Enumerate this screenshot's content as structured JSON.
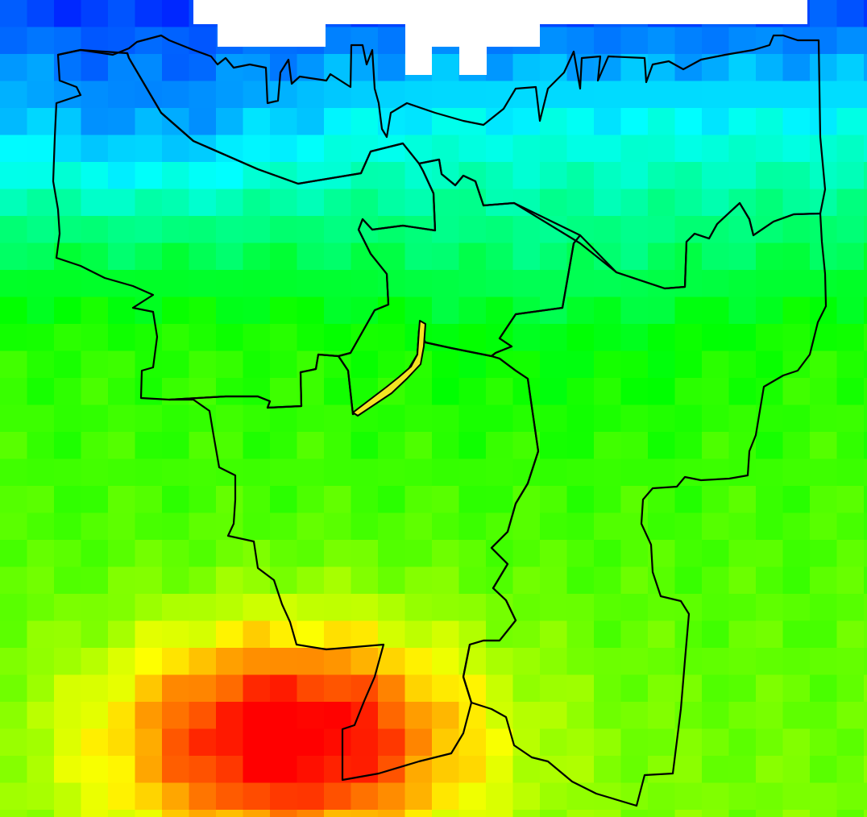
{
  "map": {
    "kind": "gridded-heatmap-with-administrative-boundaries",
    "colormap": [
      "#0000ff",
      "#00ffff",
      "#00ff00",
      "#ffff00",
      "#ff0000"
    ],
    "boundary_color": "#000000",
    "nodata_color": "#ffffff",
    "highlighted_feature_color": "#f3e424"
  }
}
